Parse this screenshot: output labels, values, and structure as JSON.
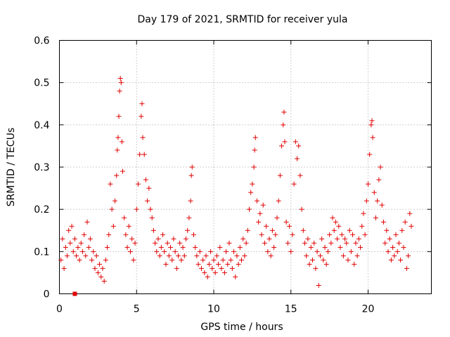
{
  "chart_data": {
    "type": "scatter",
    "title": "Day 179 of 2021, SRMTID for receiver yula",
    "xlabel": "GPS time / hours",
    "ylabel": "SRMTID / TECUs",
    "xlim": [
      0,
      24.1
    ],
    "ylim": [
      0,
      0.6
    ],
    "xticks": [
      0,
      5,
      10,
      15,
      20
    ],
    "xtick_labels": [
      "0",
      "5",
      "10",
      "15",
      "20"
    ],
    "yticks": [
      0,
      0.1,
      0.2,
      0.3,
      0.4,
      0.5,
      0.6
    ],
    "ytick_labels": [
      "0",
      "0.1",
      "0.2",
      "0.3",
      "0.4",
      "0.5",
      "0.6"
    ],
    "grid": true,
    "marker": "plus",
    "color": "#e00000",
    "square_marker": {
      "x": 1.0,
      "y": 0.0
    },
    "series": [
      {
        "name": "SRMTID",
        "points": [
          [
            0.1,
            0.08
          ],
          [
            0.2,
            0.13
          ],
          [
            0.3,
            0.06
          ],
          [
            0.4,
            0.11
          ],
          [
            0.5,
            0.09
          ],
          [
            0.6,
            0.15
          ],
          [
            0.7,
            0.12
          ],
          [
            0.8,
            0.16
          ],
          [
            0.9,
            0.1
          ],
          [
            1.0,
            0.13
          ],
          [
            1.1,
            0.09
          ],
          [
            1.2,
            0.11
          ],
          [
            1.3,
            0.08
          ],
          [
            1.4,
            0.12
          ],
          [
            1.5,
            0.1
          ],
          [
            1.6,
            0.14
          ],
          [
            1.7,
            0.09
          ],
          [
            1.8,
            0.17
          ],
          [
            1.9,
            0.11
          ],
          [
            2.0,
            0.13
          ],
          [
            2.1,
            0.08
          ],
          [
            2.2,
            0.1
          ],
          [
            2.3,
            0.06
          ],
          [
            2.4,
            0.09
          ],
          [
            2.5,
            0.05
          ],
          [
            2.6,
            0.07
          ],
          [
            2.7,
            0.04
          ],
          [
            2.8,
            0.06
          ],
          [
            2.9,
            0.03
          ],
          [
            3.0,
            0.08
          ],
          [
            3.1,
            0.11
          ],
          [
            3.2,
            0.14
          ],
          [
            3.3,
            0.26
          ],
          [
            3.4,
            0.2
          ],
          [
            3.5,
            0.16
          ],
          [
            3.6,
            0.22
          ],
          [
            3.7,
            0.28
          ],
          [
            3.75,
            0.34
          ],
          [
            3.8,
            0.37
          ],
          [
            3.85,
            0.42
          ],
          [
            3.9,
            0.48
          ],
          [
            3.95,
            0.51
          ],
          [
            4.0,
            0.5
          ],
          [
            4.05,
            0.36
          ],
          [
            4.1,
            0.29
          ],
          [
            4.2,
            0.18
          ],
          [
            4.3,
            0.14
          ],
          [
            4.4,
            0.11
          ],
          [
            4.5,
            0.16
          ],
          [
            4.6,
            0.1
          ],
          [
            4.7,
            0.13
          ],
          [
            4.8,
            0.08
          ],
          [
            4.9,
            0.12
          ],
          [
            5.0,
            0.2
          ],
          [
            5.1,
            0.26
          ],
          [
            5.2,
            0.33
          ],
          [
            5.3,
            0.42
          ],
          [
            5.35,
            0.45
          ],
          [
            5.4,
            0.37
          ],
          [
            5.5,
            0.33
          ],
          [
            5.6,
            0.27
          ],
          [
            5.7,
            0.22
          ],
          [
            5.8,
            0.25
          ],
          [
            5.9,
            0.2
          ],
          [
            6.0,
            0.18
          ],
          [
            6.1,
            0.15
          ],
          [
            6.2,
            0.12
          ],
          [
            6.3,
            0.1
          ],
          [
            6.4,
            0.13
          ],
          [
            6.5,
            0.09
          ],
          [
            6.6,
            0.11
          ],
          [
            6.7,
            0.14
          ],
          [
            6.8,
            0.1
          ],
          [
            6.9,
            0.07
          ],
          [
            7.0,
            0.12
          ],
          [
            7.1,
            0.09
          ],
          [
            7.2,
            0.11
          ],
          [
            7.3,
            0.08
          ],
          [
            7.4,
            0.13
          ],
          [
            7.5,
            0.1
          ],
          [
            7.6,
            0.06
          ],
          [
            7.7,
            0.09
          ],
          [
            7.8,
            0.12
          ],
          [
            7.9,
            0.08
          ],
          [
            8.0,
            0.11
          ],
          [
            8.1,
            0.09
          ],
          [
            8.2,
            0.13
          ],
          [
            8.3,
            0.15
          ],
          [
            8.4,
            0.18
          ],
          [
            8.5,
            0.22
          ],
          [
            8.55,
            0.28
          ],
          [
            8.6,
            0.3
          ],
          [
            8.7,
            0.14
          ],
          [
            8.8,
            0.11
          ],
          [
            8.9,
            0.09
          ],
          [
            9.0,
            0.07
          ],
          [
            9.1,
            0.1
          ],
          [
            9.2,
            0.06
          ],
          [
            9.3,
            0.08
          ],
          [
            9.4,
            0.05
          ],
          [
            9.5,
            0.09
          ],
          [
            9.6,
            0.04
          ],
          [
            9.7,
            0.07
          ],
          [
            9.8,
            0.1
          ],
          [
            9.9,
            0.06
          ],
          [
            10.0,
            0.08
          ],
          [
            10.1,
            0.05
          ],
          [
            10.2,
            0.09
          ],
          [
            10.3,
            0.07
          ],
          [
            10.4,
            0.11
          ],
          [
            10.5,
            0.06
          ],
          [
            10.6,
            0.08
          ],
          [
            10.7,
            0.05
          ],
          [
            10.8,
            0.1
          ],
          [
            10.9,
            0.07
          ],
          [
            11.0,
            0.12
          ],
          [
            11.1,
            0.08
          ],
          [
            11.2,
            0.06
          ],
          [
            11.3,
            0.1
          ],
          [
            11.4,
            0.04
          ],
          [
            11.5,
            0.09
          ],
          [
            11.6,
            0.07
          ],
          [
            11.7,
            0.11
          ],
          [
            11.8,
            0.08
          ],
          [
            11.9,
            0.13
          ],
          [
            12.0,
            0.09
          ],
          [
            12.1,
            0.12
          ],
          [
            12.2,
            0.15
          ],
          [
            12.3,
            0.2
          ],
          [
            12.4,
            0.24
          ],
          [
            12.5,
            0.26
          ],
          [
            12.6,
            0.3
          ],
          [
            12.65,
            0.34
          ],
          [
            12.7,
            0.37
          ],
          [
            12.8,
            0.22
          ],
          [
            12.9,
            0.17
          ],
          [
            13.0,
            0.19
          ],
          [
            13.1,
            0.14
          ],
          [
            13.2,
            0.21
          ],
          [
            13.3,
            0.12
          ],
          [
            13.4,
            0.16
          ],
          [
            13.5,
            0.1
          ],
          [
            13.6,
            0.13
          ],
          [
            13.7,
            0.09
          ],
          [
            13.8,
            0.15
          ],
          [
            13.9,
            0.11
          ],
          [
            14.0,
            0.14
          ],
          [
            14.1,
            0.18
          ],
          [
            14.2,
            0.22
          ],
          [
            14.3,
            0.28
          ],
          [
            14.4,
            0.35
          ],
          [
            14.5,
            0.4
          ],
          [
            14.55,
            0.43
          ],
          [
            14.6,
            0.36
          ],
          [
            14.7,
            0.17
          ],
          [
            14.8,
            0.12
          ],
          [
            14.9,
            0.16
          ],
          [
            15.0,
            0.1
          ],
          [
            15.1,
            0.14
          ],
          [
            15.2,
            0.26
          ],
          [
            15.3,
            0.36
          ],
          [
            15.4,
            0.32
          ],
          [
            15.5,
            0.35
          ],
          [
            15.6,
            0.28
          ],
          [
            15.7,
            0.2
          ],
          [
            15.8,
            0.15
          ],
          [
            15.9,
            0.12
          ],
          [
            16.0,
            0.09
          ],
          [
            16.1,
            0.13
          ],
          [
            16.2,
            0.07
          ],
          [
            16.3,
            0.11
          ],
          [
            16.4,
            0.08
          ],
          [
            16.5,
            0.12
          ],
          [
            16.6,
            0.06
          ],
          [
            16.7,
            0.1
          ],
          [
            16.8,
            0.02
          ],
          [
            16.9,
            0.09
          ],
          [
            17.0,
            0.13
          ],
          [
            17.1,
            0.08
          ],
          [
            17.2,
            0.11
          ],
          [
            17.3,
            0.07
          ],
          [
            17.4,
            0.1
          ],
          [
            17.5,
            0.14
          ],
          [
            17.6,
            0.12
          ],
          [
            17.7,
            0.18
          ],
          [
            17.8,
            0.15
          ],
          [
            17.9,
            0.17
          ],
          [
            18.0,
            0.13
          ],
          [
            18.1,
            0.16
          ],
          [
            18.2,
            0.11
          ],
          [
            18.3,
            0.14
          ],
          [
            18.4,
            0.09
          ],
          [
            18.5,
            0.13
          ],
          [
            18.6,
            0.12
          ],
          [
            18.7,
            0.08
          ],
          [
            18.8,
            0.15
          ],
          [
            18.9,
            0.1
          ],
          [
            19.0,
            0.14
          ],
          [
            19.1,
            0.07
          ],
          [
            19.2,
            0.12
          ],
          [
            19.3,
            0.09
          ],
          [
            19.4,
            0.13
          ],
          [
            19.5,
            0.11
          ],
          [
            19.6,
            0.16
          ],
          [
            19.7,
            0.19
          ],
          [
            19.8,
            0.14
          ],
          [
            19.9,
            0.22
          ],
          [
            20.0,
            0.26
          ],
          [
            20.1,
            0.33
          ],
          [
            20.2,
            0.4
          ],
          [
            20.25,
            0.41
          ],
          [
            20.3,
            0.37
          ],
          [
            20.4,
            0.24
          ],
          [
            20.5,
            0.18
          ],
          [
            20.6,
            0.22
          ],
          [
            20.7,
            0.27
          ],
          [
            20.8,
            0.3
          ],
          [
            20.9,
            0.21
          ],
          [
            21.0,
            0.17
          ],
          [
            21.1,
            0.12
          ],
          [
            21.2,
            0.15
          ],
          [
            21.3,
            0.1
          ],
          [
            21.4,
            0.13
          ],
          [
            21.5,
            0.08
          ],
          [
            21.6,
            0.11
          ],
          [
            21.7,
            0.09
          ],
          [
            21.8,
            0.14
          ],
          [
            21.9,
            0.1
          ],
          [
            22.0,
            0.12
          ],
          [
            22.1,
            0.08
          ],
          [
            22.2,
            0.15
          ],
          [
            22.3,
            0.11
          ],
          [
            22.4,
            0.17
          ],
          [
            22.5,
            0.06
          ],
          [
            22.6,
            0.09
          ],
          [
            22.7,
            0.19
          ],
          [
            22.8,
            0.16
          ]
        ]
      }
    ]
  }
}
